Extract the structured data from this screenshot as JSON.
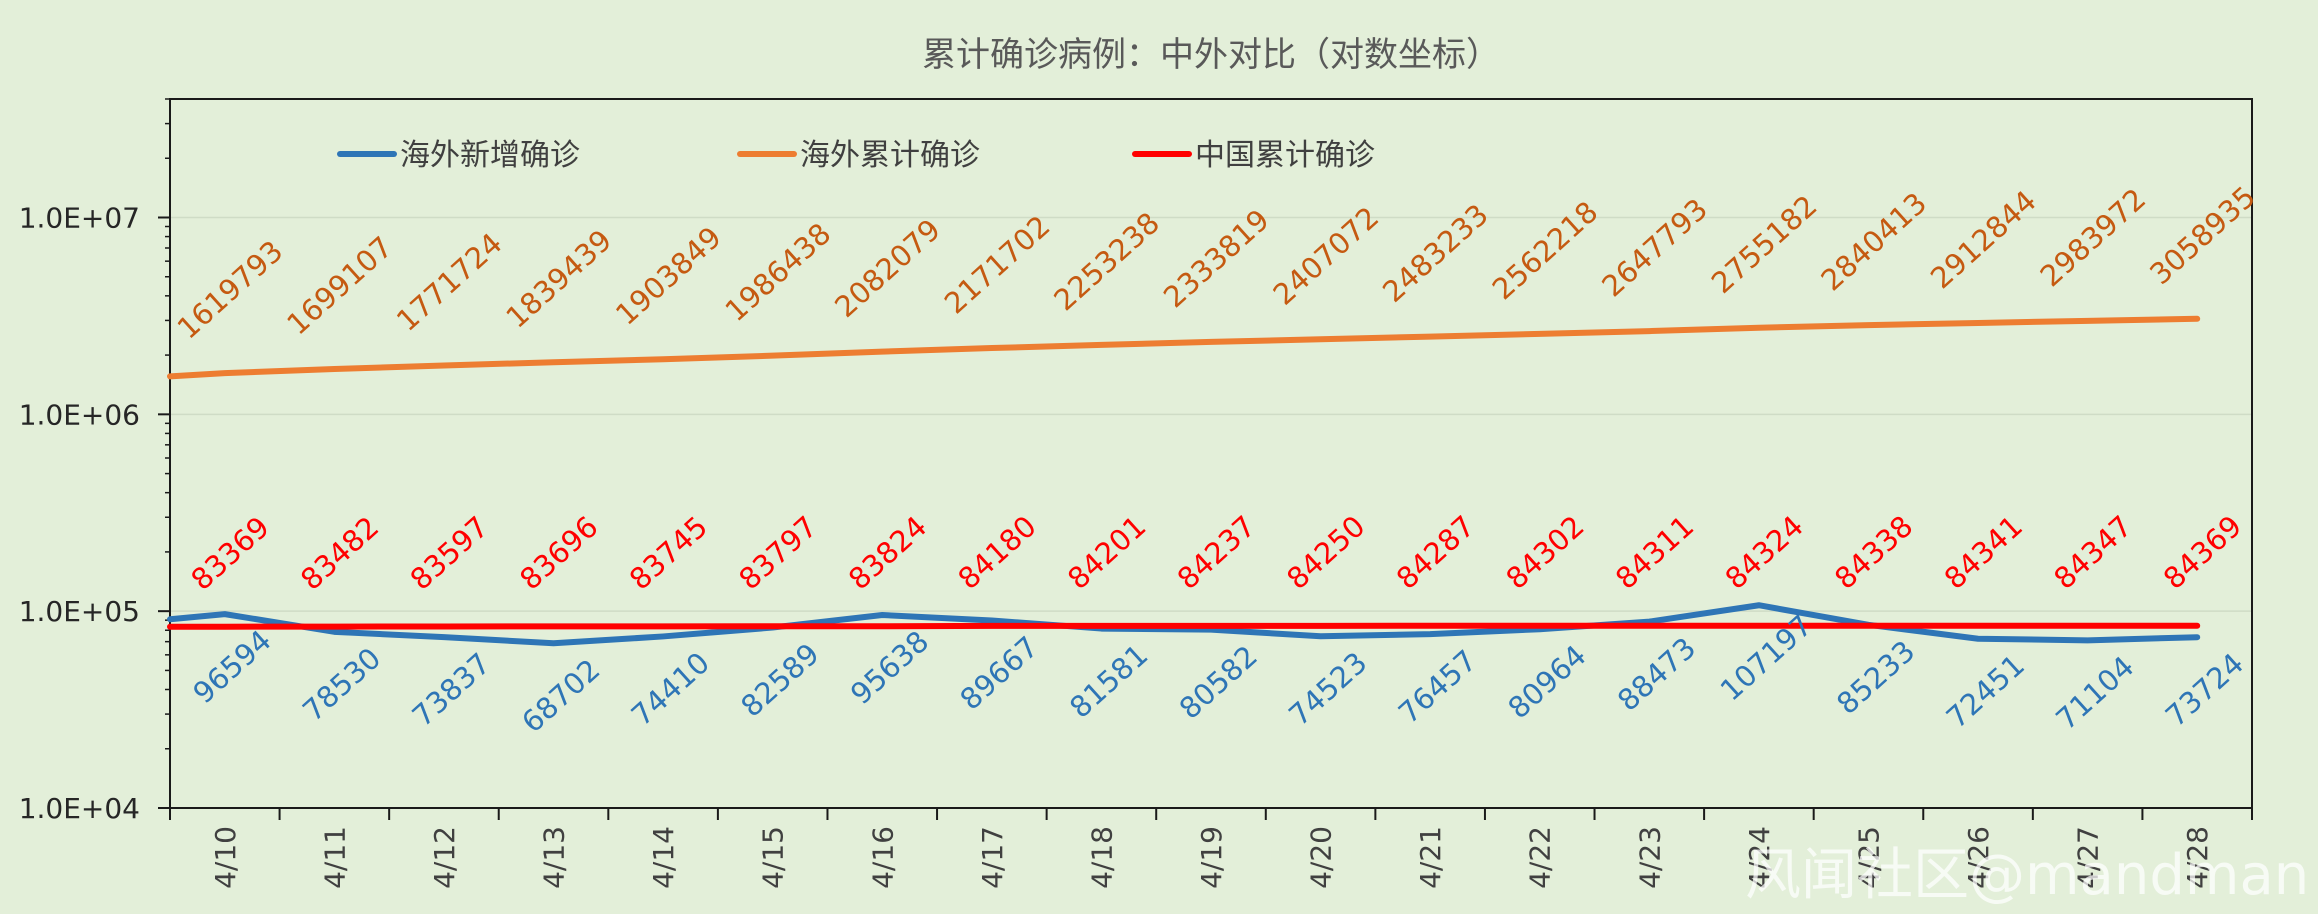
{
  "chart_data": {
    "type": "line",
    "title": "累计确诊病例：中外对比（对数坐标）",
    "xlabel": "",
    "ylabel": "",
    "yscale": "log",
    "ylim": [
      10000,
      40000000
    ],
    "yticks": [
      10000,
      100000,
      1000000,
      10000000
    ],
    "ytick_labels": [
      "1.0E+04",
      "1.0E+05",
      "1.0E+06",
      "1.0E+07"
    ],
    "grid": true,
    "legend_position": "top-left",
    "categories": [
      "4/10",
      "4/11",
      "4/12",
      "4/13",
      "4/14",
      "4/15",
      "4/16",
      "4/17",
      "4/18",
      "4/19",
      "4/20",
      "4/21",
      "4/22",
      "4/23",
      "4/24",
      "4/25",
      "4/26",
      "4/27",
      "4/28"
    ],
    "series": [
      {
        "name": "海外新增确诊",
        "color": "#2e75b6",
        "values": [
          96594,
          78530,
          73837,
          68702,
          74410,
          82589,
          95638,
          89667,
          81581,
          80582,
          74523,
          76457,
          80964,
          88473,
          107197,
          85233,
          72451,
          71104,
          73724
        ],
        "start_value": 91000,
        "label_position": "below"
      },
      {
        "name": "海外累计确诊",
        "color": "#ed7d31",
        "label_color": "#c55a11",
        "values": [
          1619793,
          1699107,
          1771724,
          1839439,
          1903849,
          1986438,
          2082079,
          2171702,
          2253238,
          2333819,
          2407072,
          2483233,
          2562218,
          2647793,
          2755182,
          2840413,
          2912844,
          2983972,
          3058935
        ],
        "start_value": 1560000,
        "label_position": "above"
      },
      {
        "name": "中国累计确诊",
        "color": "#ff0000",
        "values": [
          83369,
          83482,
          83597,
          83696,
          83745,
          83797,
          83824,
          84180,
          84201,
          84237,
          84250,
          84287,
          84302,
          84311,
          84324,
          84338,
          84341,
          84347,
          84369
        ],
        "start_value": 83300,
        "label_position": "above"
      }
    ]
  },
  "watermark": "风闻社区@mandman"
}
